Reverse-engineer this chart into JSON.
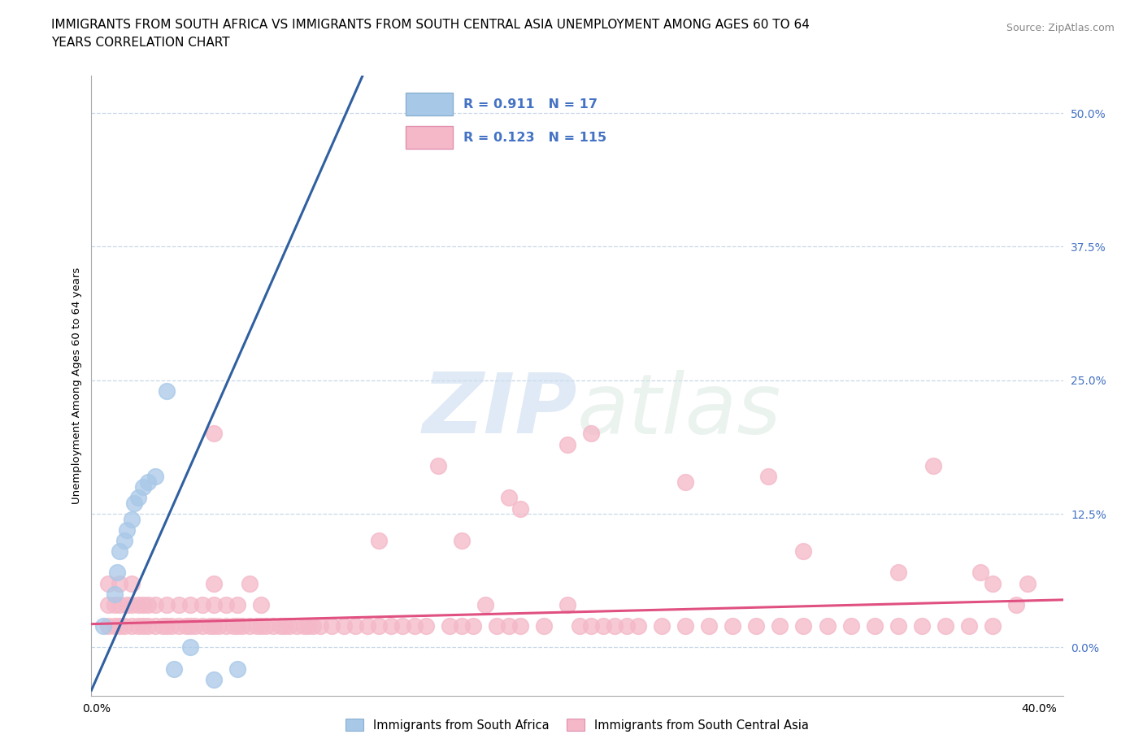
{
  "title_line1": "IMMIGRANTS FROM SOUTH AFRICA VS IMMIGRANTS FROM SOUTH CENTRAL ASIA UNEMPLOYMENT AMONG AGES 60 TO 64",
  "title_line2": "YEARS CORRELATION CHART",
  "source": "Source: ZipAtlas.com",
  "ylabel": "Unemployment Among Ages 60 to 64 years",
  "xlim": [
    -0.002,
    0.41
  ],
  "ylim": [
    -0.045,
    0.535
  ],
  "yticks_right": [
    0.0,
    0.125,
    0.25,
    0.375,
    0.5
  ],
  "ytick_labels_right": [
    "0.0%",
    "12.5%",
    "25.0%",
    "37.5%",
    "50.0%"
  ],
  "xtick_positions": [
    0.0,
    0.4
  ],
  "xtick_labels": [
    "0.0%",
    "40.0%"
  ],
  "blue_color": "#a8c8e8",
  "pink_color": "#f4b8c8",
  "blue_line_color": "#3060a0",
  "pink_line_color": "#e05080",
  "blue_label": "Immigrants from South Africa",
  "pink_label": "Immigrants from South Central Asia",
  "R_blue": 0.911,
  "N_blue": 17,
  "R_pink": 0.123,
  "N_pink": 115,
  "blue_scatter_x": [
    0.003,
    0.008,
    0.009,
    0.01,
    0.012,
    0.013,
    0.015,
    0.016,
    0.018,
    0.02,
    0.022,
    0.025,
    0.03,
    0.033,
    0.04,
    0.05,
    0.06
  ],
  "blue_scatter_y": [
    0.02,
    0.05,
    0.07,
    0.09,
    0.1,
    0.11,
    0.12,
    0.135,
    0.14,
    0.15,
    0.155,
    0.16,
    0.24,
    -0.02,
    0.0,
    -0.03,
    -0.02
  ],
  "blue_trend_x": [
    -0.002,
    0.41
  ],
  "blue_trend_y_intercept": -0.03,
  "blue_trend_slope": 5.0,
  "pink_trend_x": [
    -0.002,
    0.41
  ],
  "pink_trend_y_intercept": 0.022,
  "pink_trend_slope": 0.055,
  "pink_scatter_x": [
    0.005,
    0.005,
    0.005,
    0.008,
    0.008,
    0.01,
    0.01,
    0.01,
    0.012,
    0.013,
    0.015,
    0.015,
    0.015,
    0.018,
    0.018,
    0.02,
    0.02,
    0.022,
    0.022,
    0.025,
    0.025,
    0.028,
    0.03,
    0.03,
    0.032,
    0.035,
    0.035,
    0.038,
    0.04,
    0.04,
    0.042,
    0.045,
    0.045,
    0.048,
    0.05,
    0.05,
    0.05,
    0.052,
    0.055,
    0.055,
    0.058,
    0.06,
    0.06,
    0.062,
    0.065,
    0.065,
    0.068,
    0.07,
    0.07,
    0.072,
    0.075,
    0.078,
    0.08,
    0.082,
    0.085,
    0.088,
    0.09,
    0.092,
    0.095,
    0.1,
    0.105,
    0.11,
    0.115,
    0.12,
    0.125,
    0.13,
    0.135,
    0.14,
    0.15,
    0.155,
    0.16,
    0.165,
    0.17,
    0.175,
    0.18,
    0.19,
    0.2,
    0.205,
    0.21,
    0.215,
    0.22,
    0.225,
    0.23,
    0.24,
    0.25,
    0.26,
    0.27,
    0.28,
    0.29,
    0.3,
    0.31,
    0.32,
    0.33,
    0.34,
    0.35,
    0.36,
    0.37,
    0.38,
    0.39,
    0.395,
    0.145,
    0.175,
    0.2,
    0.155,
    0.21,
    0.285,
    0.355,
    0.375,
    0.05,
    0.12,
    0.18,
    0.25,
    0.3,
    0.34,
    0.38
  ],
  "pink_scatter_y": [
    0.02,
    0.04,
    0.06,
    0.02,
    0.04,
    0.02,
    0.04,
    0.06,
    0.02,
    0.04,
    0.02,
    0.04,
    0.06,
    0.02,
    0.04,
    0.02,
    0.04,
    0.02,
    0.04,
    0.02,
    0.04,
    0.02,
    0.02,
    0.04,
    0.02,
    0.02,
    0.04,
    0.02,
    0.02,
    0.04,
    0.02,
    0.02,
    0.04,
    0.02,
    0.02,
    0.04,
    0.06,
    0.02,
    0.02,
    0.04,
    0.02,
    0.02,
    0.04,
    0.02,
    0.02,
    0.06,
    0.02,
    0.02,
    0.04,
    0.02,
    0.02,
    0.02,
    0.02,
    0.02,
    0.02,
    0.02,
    0.02,
    0.02,
    0.02,
    0.02,
    0.02,
    0.02,
    0.02,
    0.02,
    0.02,
    0.02,
    0.02,
    0.02,
    0.02,
    0.02,
    0.02,
    0.04,
    0.02,
    0.02,
    0.02,
    0.02,
    0.04,
    0.02,
    0.02,
    0.02,
    0.02,
    0.02,
    0.02,
    0.02,
    0.02,
    0.02,
    0.02,
    0.02,
    0.02,
    0.02,
    0.02,
    0.02,
    0.02,
    0.02,
    0.02,
    0.02,
    0.02,
    0.02,
    0.04,
    0.06,
    0.17,
    0.14,
    0.19,
    0.1,
    0.2,
    0.16,
    0.17,
    0.07,
    0.2,
    0.1,
    0.13,
    0.155,
    0.09,
    0.07,
    0.06
  ],
  "watermark_zip": "ZIP",
  "watermark_atlas": "atlas",
  "background_color": "#ffffff",
  "grid_color": "#c8d8e8",
  "axis_text_color": "#4472c4",
  "title_fontsize": 11,
  "label_fontsize": 9.5,
  "tick_fontsize": 10
}
